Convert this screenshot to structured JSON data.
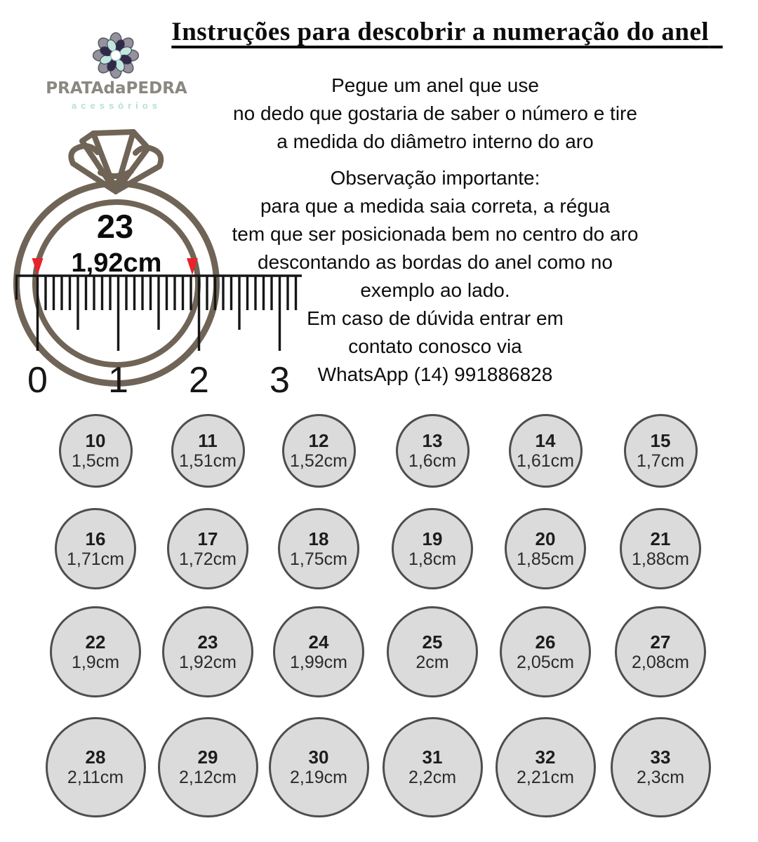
{
  "header": {
    "title": "Instruções para descobrir a numeração do anel",
    "brand": "PRATAdaPEDRA",
    "brand_tagline": "acessórios"
  },
  "instructions": {
    "intro_lines": [
      "Pegue um anel que use",
      "no dedo que gostaria de saber o número e tire",
      "a medida do diâmetro interno do aro"
    ],
    "note_lines": [
      "Observação importante:",
      "para que a medida saia correta, a régua",
      "tem que ser posicionada bem no centro do aro",
      "descontando as bordas do anel como no",
      "exemplo ao lado.",
      "Em caso de dúvida entrar em",
      "contato conosco via",
      "WhatsApp (14) 991886828"
    ]
  },
  "ring_example": {
    "size_number": "23",
    "inner_diameter": "1,92cm",
    "ruler_labels": [
      "0",
      "1",
      "2",
      "3"
    ]
  },
  "size_chart": {
    "rows": [
      [
        {
          "number": "10",
          "diameter": "1,5cm"
        },
        {
          "number": "11",
          "diameter": "1,51cm"
        },
        {
          "number": "12",
          "diameter": "1,52cm"
        },
        {
          "number": "13",
          "diameter": "1,6cm"
        },
        {
          "number": "14",
          "diameter": "1,61cm"
        },
        {
          "number": "15",
          "diameter": "1,7cm"
        }
      ],
      [
        {
          "number": "16",
          "diameter": "1,71cm"
        },
        {
          "number": "17",
          "diameter": "1,72cm"
        },
        {
          "number": "18",
          "diameter": "1,75cm"
        },
        {
          "number": "19",
          "diameter": "1,8cm"
        },
        {
          "number": "20",
          "diameter": "1,85cm"
        },
        {
          "number": "21",
          "diameter": "1,88cm"
        }
      ],
      [
        {
          "number": "22",
          "diameter": "1,9cm"
        },
        {
          "number": "23",
          "diameter": "1,92cm"
        },
        {
          "number": "24",
          "diameter": "1,99cm"
        },
        {
          "number": "25",
          "diameter": "2cm"
        },
        {
          "number": "26",
          "diameter": "2,05cm"
        },
        {
          "number": "27",
          "diameter": "2,08cm"
        }
      ],
      [
        {
          "number": "28",
          "diameter": "2,11cm"
        },
        {
          "number": "29",
          "diameter": "2,12cm"
        },
        {
          "number": "30",
          "diameter": "2,19cm"
        },
        {
          "number": "31",
          "diameter": "2,2cm"
        },
        {
          "number": "32",
          "diameter": "2,21cm"
        },
        {
          "number": "33",
          "diameter": "2,3cm"
        }
      ]
    ]
  },
  "colors": {
    "ring_outline": "#6f6456",
    "ruler_black": "#161616",
    "arrow_red": "#e8232a",
    "circle_fill": "#dbdbdb",
    "circle_border": "#4e4e4e",
    "brand_gray": "#8b8781",
    "brand_teal": "#b7ded7"
  }
}
